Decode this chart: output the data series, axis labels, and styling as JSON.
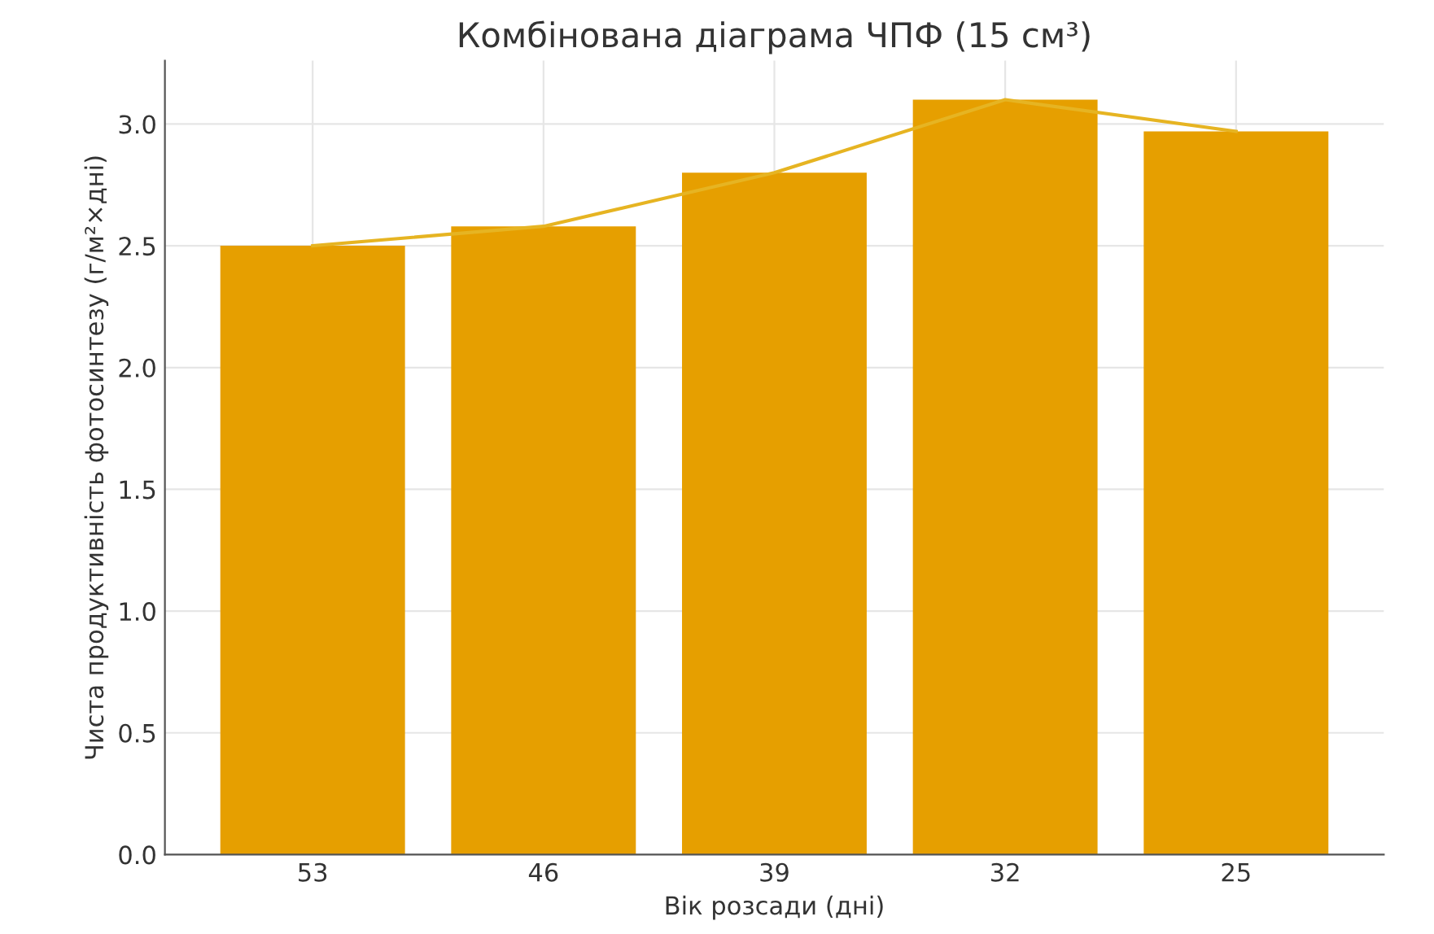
{
  "chart_data": {
    "type": "bar",
    "title": "Комбінована діаграма ЧПФ (15 см³)",
    "xlabel": "Вік розсади (дні)",
    "ylabel": "Чиста продуктивність фотосинтезу (г/м²×дні)",
    "categories": [
      "53",
      "46",
      "39",
      "32",
      "25"
    ],
    "series": [
      {
        "color": "#e69f00",
        "values": [
          2.5,
          2.58,
          2.8,
          3.1,
          2.97
        ]
      },
      {
        "type": "line",
        "color": "#e6b422",
        "values": [
          2.5,
          2.58,
          2.8,
          3.1,
          2.97
        ]
      }
    ],
    "ylim": [
      0,
      3.26
    ],
    "yticks": [
      {
        "value": 0,
        "label": "0.0"
      },
      {
        "value": 0.5,
        "label": "0.5"
      },
      {
        "value": 1,
        "label": "1.0"
      },
      {
        "value": 1.5,
        "label": "1.5"
      },
      {
        "value": 2,
        "label": "2.0"
      },
      {
        "value": 2.5,
        "label": "2.5"
      },
      {
        "value": 3,
        "label": "3.0"
      }
    ],
    "grid": true
  }
}
